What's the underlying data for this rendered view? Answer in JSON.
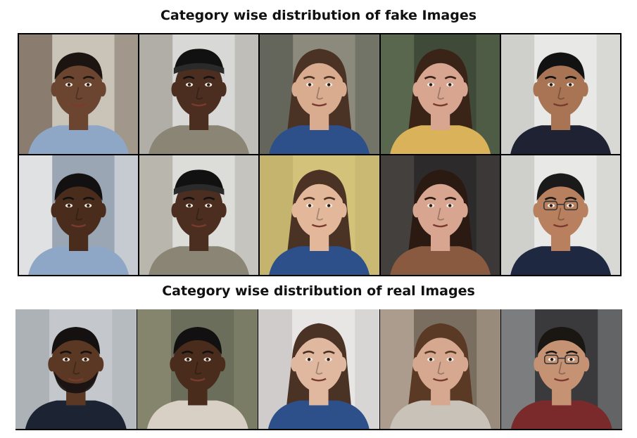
{
  "fake_section": {
    "title": "Category wise distribution of fake Images",
    "tiles": [
      {
        "name": "fake-face-1",
        "bg": "#c9c3b8",
        "bg2": "#7a6b5e",
        "skin": "#6b4530",
        "hair": "#1b1410",
        "shirt": "#8fa7c6",
        "hair_style": "short"
      },
      {
        "name": "fake-face-2",
        "bg": "#d8d8d6",
        "bg2": "#a8a49c",
        "skin": "#4b2e20",
        "hair": "#111111",
        "shirt": "#8a8574",
        "hair_style": "wrap"
      },
      {
        "name": "fake-face-3",
        "bg": "#8b8a7c",
        "bg2": "#5a5d52",
        "skin": "#d9ab8f",
        "hair": "#4a3224",
        "shirt": "#2d4f8a",
        "hair_style": "long"
      },
      {
        "name": "fake-face-4",
        "bg": "#3f4a38",
        "bg2": "#5f6e52",
        "skin": "#d8a590",
        "hair": "#3a2418",
        "shirt": "#d9b25a",
        "hair_style": "long"
      },
      {
        "name": "fake-face-5",
        "bg": "#e8e8e6",
        "bg2": "#c8c8c4",
        "skin": "#a87454",
        "hair": "#121212",
        "shirt": "#1e2233",
        "hair_style": "short"
      },
      {
        "name": "fake-face-6",
        "bg": "#9aa6b4",
        "bg2": "#f0f0ee",
        "skin": "#4a2c1c",
        "hair": "#121010",
        "shirt": "#8fa7c6",
        "hair_style": "short"
      },
      {
        "name": "fake-face-7",
        "bg": "#dcdcd8",
        "bg2": "#b0aca4",
        "skin": "#4b2e20",
        "hair": "#111111",
        "shirt": "#8a8574",
        "hair_style": "wrap"
      },
      {
        "name": "fake-face-8",
        "bg": "#d3c27a",
        "bg2": "#c2b06a",
        "skin": "#e3b89a",
        "hair": "#4a3224",
        "shirt": "#2d4f8a",
        "hair_style": "long"
      },
      {
        "name": "fake-face-9",
        "bg": "#2c2a2a",
        "bg2": "#4a4644",
        "skin": "#d8a590",
        "hair": "#2a1a12",
        "shirt": "#8a5a40",
        "hair_style": "long"
      },
      {
        "name": "fake-face-10",
        "bg": "#e8e8e6",
        "bg2": "#c8c8c4",
        "skin": "#b8805e",
        "hair": "#1a1a1a",
        "shirt": "#1e2840",
        "hair_style": "short",
        "glasses": true
      }
    ]
  },
  "real_section": {
    "title": "Category wise distribution of real Images",
    "tiles": [
      {
        "name": "real-face-1",
        "bg": "#c4c8cc",
        "bg2": "#a8adb2",
        "skin": "#5a3824",
        "hair": "#151111",
        "shirt": "#1c2433",
        "hair_style": "short",
        "beard": true
      },
      {
        "name": "real-face-2",
        "bg": "#6a6e5a",
        "bg2": "#8c8a70",
        "skin": "#4a2c1c",
        "hair": "#121010",
        "shirt": "#d8d0c4",
        "hair_style": "short"
      },
      {
        "name": "real-face-3",
        "bg": "#e8e6e4",
        "bg2": "#c8c6c4",
        "skin": "#e0b8a0",
        "hair": "#4a3224",
        "shirt": "#2d4f8a",
        "hair_style": "long"
      },
      {
        "name": "real-face-4",
        "bg": "#7a6e60",
        "bg2": "#b8a898",
        "skin": "#d6a890",
        "hair": "#5a3a24",
        "shirt": "#c8c2b8",
        "hair_style": "long"
      },
      {
        "name": "real-face-5",
        "bg": "#3a3a3c",
        "bg2": "#8c8e90",
        "skin": "#c69274",
        "hair": "#1a1612",
        "shirt": "#7a2a2a",
        "hair_style": "short",
        "glasses": true
      }
    ]
  }
}
